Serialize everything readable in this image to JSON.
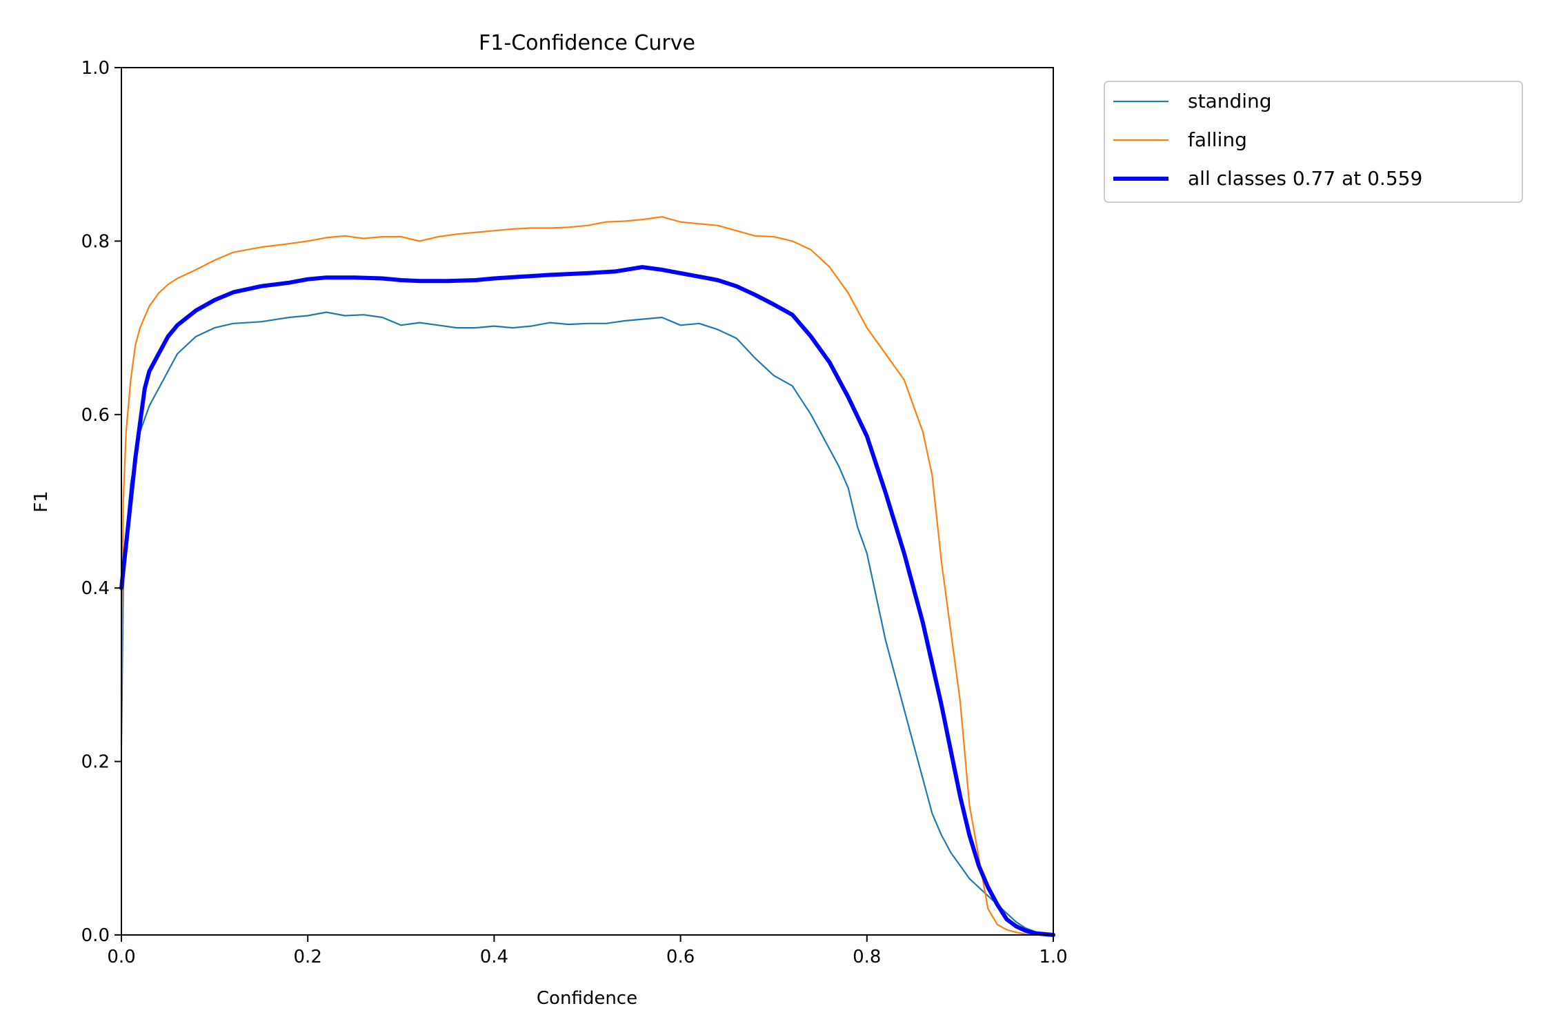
{
  "chart_data": {
    "type": "line",
    "title": "F1-Confidence Curve",
    "xlabel": "Confidence",
    "ylabel": "F1",
    "xlim": [
      0.0,
      1.0
    ],
    "ylim": [
      0.0,
      1.0
    ],
    "xticks": [
      0.0,
      0.2,
      0.4,
      0.6,
      0.8,
      1.0
    ],
    "xtick_labels": [
      "0.0",
      "0.2",
      "0.4",
      "0.6",
      "0.8",
      "1.0"
    ],
    "yticks": [
      0.0,
      0.2,
      0.4,
      0.6,
      0.8,
      1.0
    ],
    "ytick_labels": [
      "0.0",
      "0.2",
      "0.4",
      "0.6",
      "0.8",
      "1.0"
    ],
    "grid": false,
    "legend_position": "outside-top-right",
    "series": [
      {
        "name": "standing",
        "color": "#1f77b4",
        "x": [
          0.0,
          0.002,
          0.005,
          0.01,
          0.02,
          0.03,
          0.04,
          0.05,
          0.06,
          0.07,
          0.08,
          0.09,
          0.1,
          0.12,
          0.15,
          0.18,
          0.2,
          0.22,
          0.24,
          0.26,
          0.28,
          0.3,
          0.32,
          0.34,
          0.36,
          0.38,
          0.4,
          0.42,
          0.44,
          0.46,
          0.48,
          0.5,
          0.52,
          0.54,
          0.56,
          0.58,
          0.6,
          0.62,
          0.64,
          0.66,
          0.68,
          0.7,
          0.72,
          0.74,
          0.76,
          0.77,
          0.78,
          0.79,
          0.8,
          0.81,
          0.82,
          0.83,
          0.84,
          0.85,
          0.86,
          0.87,
          0.88,
          0.89,
          0.9,
          0.91,
          0.92,
          0.93,
          0.94,
          0.95,
          0.96,
          0.97,
          0.98,
          0.99,
          1.0
        ],
        "y": [
          0.22,
          0.4,
          0.46,
          0.52,
          0.58,
          0.61,
          0.63,
          0.65,
          0.67,
          0.68,
          0.69,
          0.695,
          0.7,
          0.705,
          0.707,
          0.712,
          0.714,
          0.718,
          0.714,
          0.715,
          0.712,
          0.703,
          0.706,
          0.703,
          0.7,
          0.7,
          0.702,
          0.7,
          0.702,
          0.706,
          0.704,
          0.705,
          0.705,
          0.708,
          0.71,
          0.712,
          0.703,
          0.705,
          0.698,
          0.688,
          0.665,
          0.645,
          0.633,
          0.6,
          0.56,
          0.54,
          0.515,
          0.47,
          0.44,
          0.39,
          0.34,
          0.3,
          0.26,
          0.22,
          0.18,
          0.14,
          0.115,
          0.095,
          0.08,
          0.065,
          0.055,
          0.045,
          0.035,
          0.025,
          0.015,
          0.008,
          0.004,
          0.001,
          0.0
        ]
      },
      {
        "name": "falling",
        "color": "#ff7f0e",
        "x": [
          0.0,
          0.002,
          0.005,
          0.01,
          0.015,
          0.02,
          0.03,
          0.04,
          0.05,
          0.06,
          0.08,
          0.1,
          0.12,
          0.15,
          0.18,
          0.2,
          0.22,
          0.24,
          0.26,
          0.28,
          0.3,
          0.32,
          0.34,
          0.36,
          0.38,
          0.4,
          0.42,
          0.44,
          0.46,
          0.48,
          0.5,
          0.52,
          0.54,
          0.56,
          0.58,
          0.6,
          0.62,
          0.64,
          0.66,
          0.68,
          0.7,
          0.72,
          0.74,
          0.76,
          0.78,
          0.8,
          0.82,
          0.84,
          0.85,
          0.86,
          0.87,
          0.88,
          0.89,
          0.9,
          0.91,
          0.92,
          0.93,
          0.94,
          0.95,
          0.96,
          0.97,
          0.98,
          0.99,
          1.0
        ],
        "y": [
          0.28,
          0.5,
          0.58,
          0.64,
          0.68,
          0.7,
          0.725,
          0.74,
          0.75,
          0.757,
          0.767,
          0.778,
          0.787,
          0.793,
          0.797,
          0.8,
          0.804,
          0.806,
          0.803,
          0.805,
          0.805,
          0.8,
          0.805,
          0.808,
          0.81,
          0.812,
          0.814,
          0.815,
          0.815,
          0.816,
          0.818,
          0.822,
          0.823,
          0.825,
          0.828,
          0.822,
          0.82,
          0.818,
          0.812,
          0.806,
          0.805,
          0.8,
          0.79,
          0.77,
          0.74,
          0.7,
          0.67,
          0.64,
          0.61,
          0.58,
          0.53,
          0.43,
          0.35,
          0.27,
          0.15,
          0.09,
          0.03,
          0.012,
          0.006,
          0.003,
          0.001,
          0.0,
          0.0,
          0.0
        ]
      },
      {
        "name": "all classes 0.77 at 0.559",
        "color": "#0000ff",
        "x": [
          0.0,
          0.005,
          0.01,
          0.015,
          0.02,
          0.025,
          0.03,
          0.04,
          0.05,
          0.06,
          0.08,
          0.1,
          0.12,
          0.15,
          0.18,
          0.2,
          0.22,
          0.25,
          0.28,
          0.3,
          0.32,
          0.35,
          0.38,
          0.4,
          0.43,
          0.46,
          0.5,
          0.53,
          0.559,
          0.58,
          0.6,
          0.62,
          0.64,
          0.66,
          0.68,
          0.7,
          0.72,
          0.74,
          0.76,
          0.78,
          0.8,
          0.82,
          0.84,
          0.86,
          0.88,
          0.9,
          0.91,
          0.92,
          0.93,
          0.94,
          0.95,
          0.96,
          0.97,
          0.98,
          0.99,
          1.0
        ],
        "y": [
          0.4,
          0.45,
          0.5,
          0.55,
          0.59,
          0.63,
          0.65,
          0.67,
          0.69,
          0.703,
          0.72,
          0.732,
          0.741,
          0.748,
          0.752,
          0.756,
          0.758,
          0.758,
          0.757,
          0.755,
          0.754,
          0.754,
          0.755,
          0.757,
          0.759,
          0.761,
          0.763,
          0.765,
          0.77,
          0.767,
          0.763,
          0.759,
          0.755,
          0.748,
          0.738,
          0.727,
          0.715,
          0.69,
          0.66,
          0.62,
          0.575,
          0.51,
          0.44,
          0.36,
          0.265,
          0.16,
          0.115,
          0.08,
          0.055,
          0.035,
          0.018,
          0.01,
          0.005,
          0.002,
          0.001,
          0.0
        ]
      }
    ]
  }
}
